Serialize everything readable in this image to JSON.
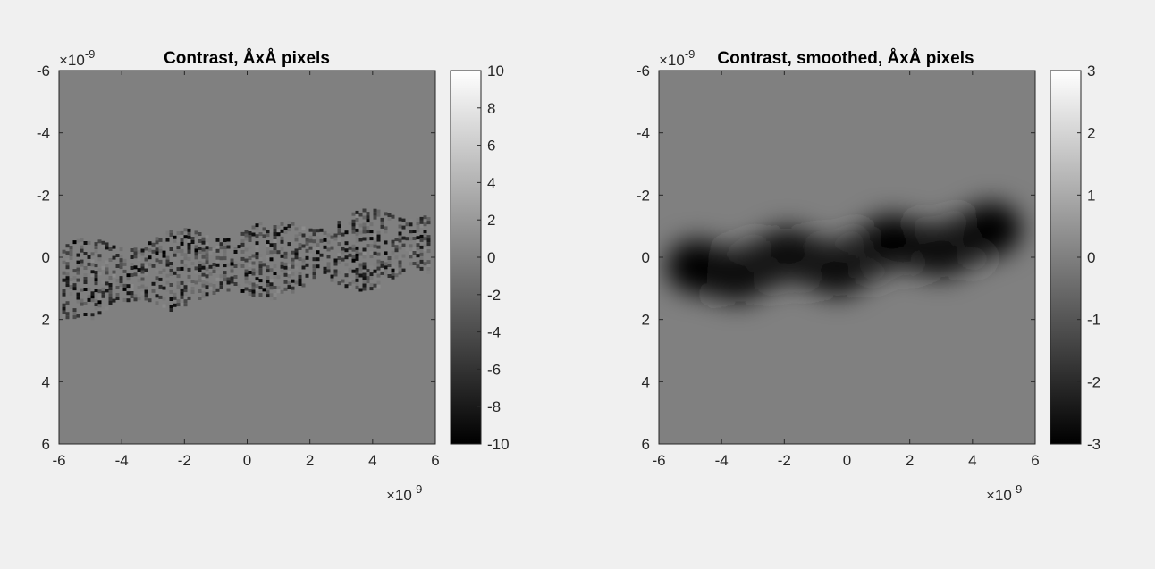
{
  "chart_data": [
    {
      "type": "heatmap",
      "title": "Contrast, ÅxÅ pixels",
      "x_exponent": "×10",
      "x_exponent_power": "-9",
      "y_exponent": "×10",
      "y_exponent_power": "-9",
      "xlim": [
        -6,
        6
      ],
      "ylim": [
        -6,
        6
      ],
      "y_direction": "reverse",
      "x_ticks": [
        "-6",
        "-4",
        "-2",
        "0",
        "2",
        "4",
        "6"
      ],
      "y_ticks": [
        "-6",
        "-4",
        "-2",
        "0",
        "2",
        "4",
        "6"
      ],
      "colormap": "gray",
      "clim": [
        -10,
        10
      ],
      "colorbar_ticks": [
        "10",
        "8",
        "6",
        "4",
        "2",
        "0",
        "-2",
        "-4",
        "-6",
        "-8",
        "-10"
      ],
      "background_value": 0,
      "feature": "dark noisy pixelated helical band from x≈-6 to x≈6, y≈+1.3 at left to y≈-1.4 at right"
    },
    {
      "type": "heatmap",
      "title": "Contrast, smoothed, ÅxÅ pixels",
      "x_exponent": "×10",
      "x_exponent_power": "-9",
      "y_exponent": "×10",
      "y_exponent_power": "-9",
      "xlim": [
        -6,
        6
      ],
      "ylim": [
        -6,
        6
      ],
      "y_direction": "reverse",
      "x_ticks": [
        "-6",
        "-4",
        "-2",
        "0",
        "2",
        "4",
        "6"
      ],
      "y_ticks": [
        "-6",
        "-4",
        "-2",
        "0",
        "2",
        "4",
        "6"
      ],
      "colormap": "gray",
      "clim": [
        -3,
        3
      ],
      "colorbar_ticks": [
        "3",
        "2",
        "1",
        "0",
        "-1",
        "-2",
        "-3"
      ],
      "background_value": 0,
      "blobs": [
        {
          "x": -4.8,
          "y": 0.3,
          "value": -3
        },
        {
          "x": -3.5,
          "y": 0.6,
          "value": -2.7
        },
        {
          "x": -1.9,
          "y": -0.1,
          "value": -2.8
        },
        {
          "x": -0.3,
          "y": 0.4,
          "value": -2.6
        },
        {
          "x": 1.4,
          "y": -0.5,
          "value": -2.9
        },
        {
          "x": 3.0,
          "y": -0.2,
          "value": -2.6
        },
        {
          "x": 4.6,
          "y": -0.9,
          "value": -3
        }
      ]
    }
  ]
}
